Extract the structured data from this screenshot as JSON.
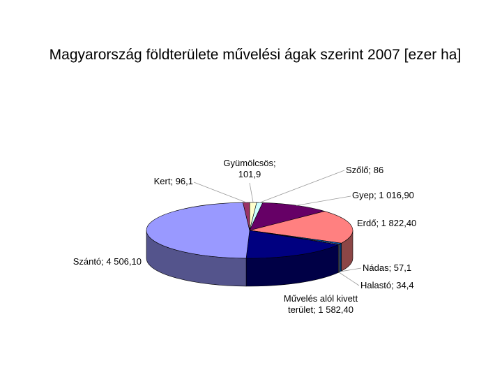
{
  "chart_data": {
    "type": "pie3d",
    "title": "Magyarország földterülete művelési ágak szerint 2007 [ezer ha]",
    "values": [
      101.9,
      86,
      1016.9,
      1822.4,
      57.1,
      34.4,
      1582.4,
      4506.1,
      96.1
    ],
    "value_labels": [
      "Gyümölcsös; 101,9",
      "Szőlő; 86",
      "Gyep; 1 016,90",
      "Erdő; 1 822,40",
      "Nádas; 57,1",
      "Halastó; 34,4",
      "Művelés alól kivett terület; 1 582,40",
      "Szántó; 4 506,10",
      "Kert; 96,1"
    ],
    "colors": [
      "#ffffcc",
      "#ccffff",
      "#660066",
      "#ff8080",
      "#0066cc",
      "#ccccff",
      "#000080",
      "#9999ff",
      "#993366"
    ]
  }
}
